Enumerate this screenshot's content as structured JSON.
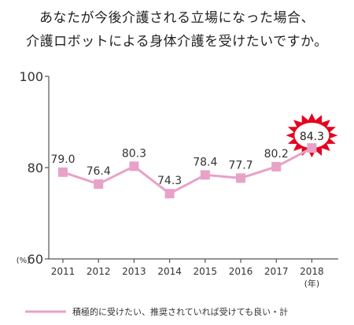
{
  "title_lines": [
    "あなたが今後介護される立場になった場合、",
    "介護ロボットによる身体介護を受けたいですか。"
  ],
  "chart_data": {
    "type": "line",
    "categories": [
      "2011",
      "2012",
      "2013",
      "2014",
      "2015",
      "2016",
      "2017",
      "2018"
    ],
    "series": [
      {
        "name": "積極的に受けたい、推奨されていれば受けても良い・計",
        "values": [
          79.0,
          76.4,
          80.3,
          74.3,
          78.4,
          77.7,
          80.2,
          84.3
        ]
      }
    ],
    "data_labels": [
      "79.0",
      "76.4",
      "80.3",
      "74.3",
      "78.4",
      "77.7",
      "80.2",
      "84.3"
    ],
    "ylim": [
      60,
      100
    ],
    "yticks": [
      "60",
      "80",
      "100"
    ],
    "ylabel": "(%)",
    "xlabel": "(年)",
    "highlight_index": 7,
    "grid": false,
    "legend_position": "bottom",
    "colors": {
      "line": "#e8a2c8",
      "marker": "#e8a2c8",
      "burst": "#e6001f",
      "axis": "#555555"
    }
  }
}
